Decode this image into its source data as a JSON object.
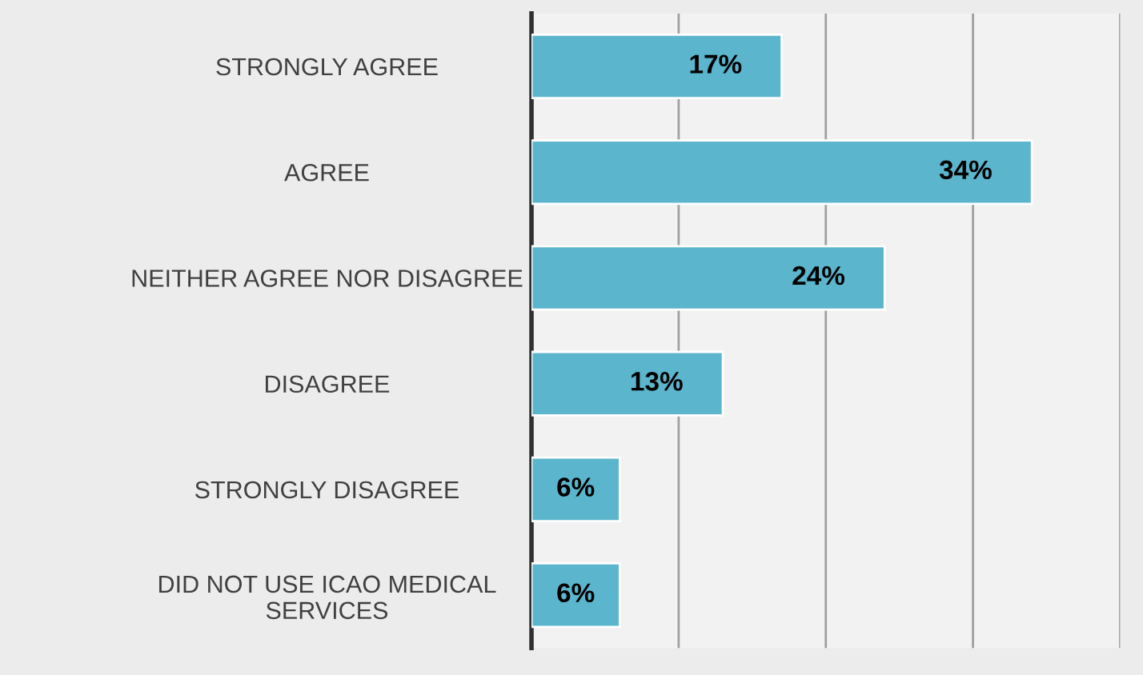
{
  "chart_data": {
    "type": "bar",
    "orientation": "horizontal",
    "categories": [
      "STRONGLY AGREE",
      "AGREE",
      "NEITHER AGREE NOR DISAGREE",
      "DISAGREE",
      "STRONGLY DISAGREE",
      "DID NOT USE ICAO MEDICAL\nSERVICES"
    ],
    "values": [
      17,
      34,
      24,
      13,
      6,
      6
    ],
    "value_labels": [
      "17%",
      "34%",
      "24%",
      "13%",
      "6%",
      "6%"
    ],
    "color": "#5bb5cc",
    "xlim": [
      0,
      40
    ],
    "xticks": [
      {
        "value": 0,
        "label": null
      },
      {
        "value": 10,
        "label": null
      },
      {
        "value": 20,
        "label": null
      },
      {
        "value": 30,
        "label": null
      },
      {
        "value": 40,
        "label": null
      }
    ],
    "grid": "x",
    "tick_labels": "y"
  }
}
